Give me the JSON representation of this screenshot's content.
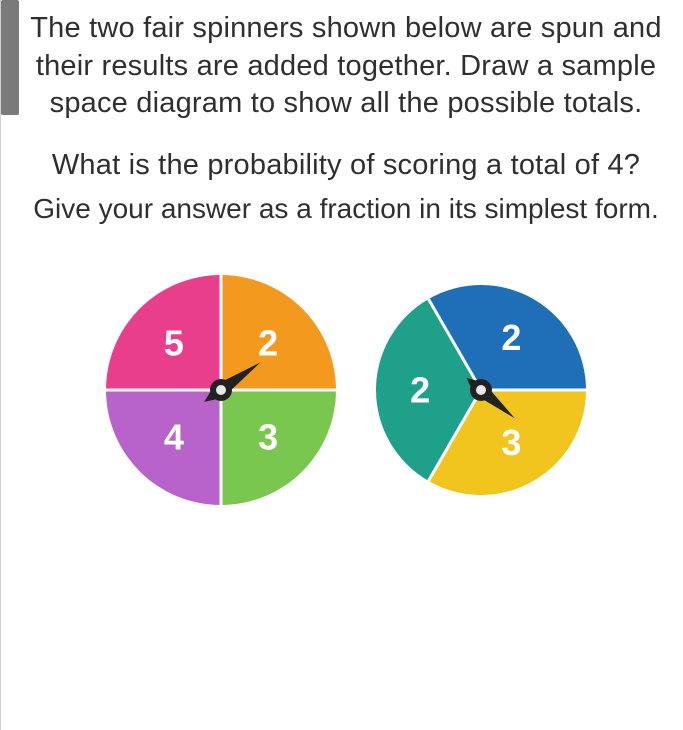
{
  "text": {
    "p1": "The two fair spinners shown below are spun and their results are added together. Draw a sample space diagram to show all the possible totals.",
    "p2": "What is the probability of scoring a total of 4?",
    "p3": "Give your answer as a fraction in its simplest form."
  },
  "scrollbar": {
    "thumb_color": "#7a7a7a",
    "thumb_height": 115
  },
  "text_color": "#2f2f2f",
  "background_color": "#ffffff",
  "spinner1": {
    "type": "pie",
    "radius": 115,
    "segments": [
      {
        "label": "2",
        "start_deg": 0,
        "end_deg": 90,
        "color": "#f39a1e"
      },
      {
        "label": "3",
        "start_deg": 90,
        "end_deg": 180,
        "color": "#7ac74f"
      },
      {
        "label": "4",
        "start_deg": 180,
        "end_deg": 270,
        "color": "#b863c9"
      },
      {
        "label": "5",
        "start_deg": 270,
        "end_deg": 360,
        "color": "#e83e8c"
      }
    ],
    "divider_color": "#ffffff",
    "divider_width": 3,
    "label_fontsize": 36,
    "label_color": "#ffffff",
    "pointer_angle_deg": 55
  },
  "spinner2": {
    "type": "pie",
    "radius": 105,
    "segments": [
      {
        "label": "2",
        "start_deg": 330,
        "end_deg": 450,
        "color": "#1e6fb8"
      },
      {
        "label": "3",
        "start_deg": 90,
        "end_deg": 210,
        "color": "#f2c41e"
      },
      {
        "label": "2",
        "start_deg": 210,
        "end_deg": 330,
        "color": "#1fa08b"
      }
    ],
    "divider_color": "#ffffff",
    "divider_width": 3,
    "label_fontsize": 36,
    "label_color": "#ffffff",
    "pointer_angle_deg": 130
  }
}
